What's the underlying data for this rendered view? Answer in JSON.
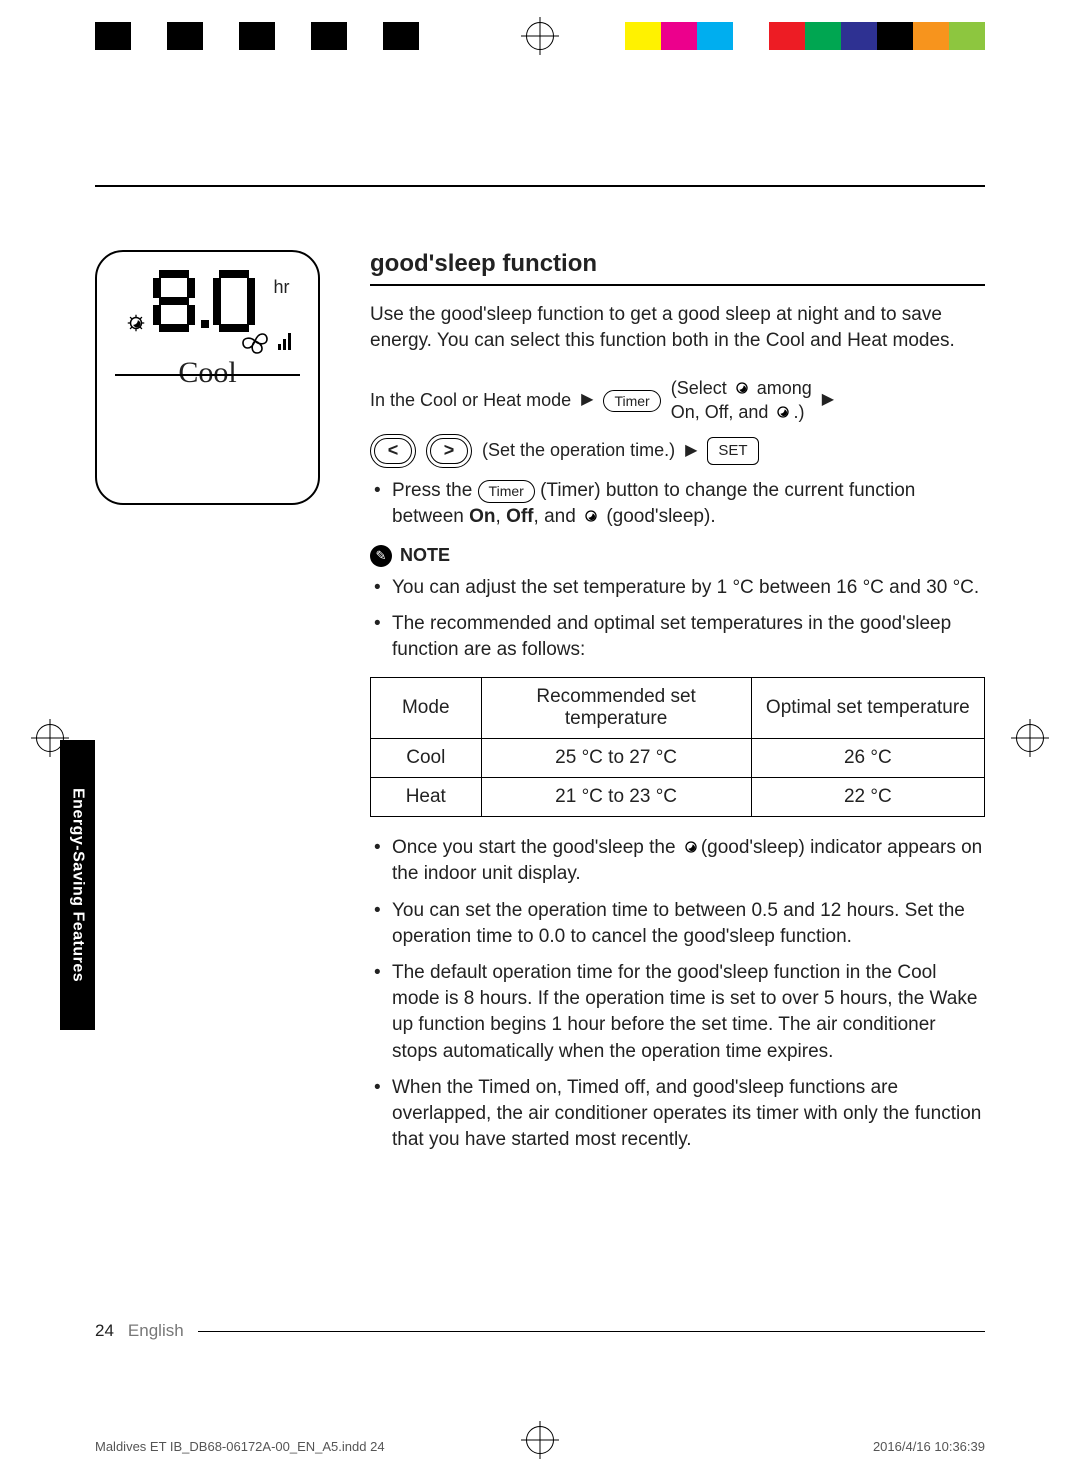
{
  "print": {
    "left_bars": [
      "#000000",
      "#ffffff",
      "#000000",
      "#ffffff",
      "#000000",
      "#ffffff",
      "#000000",
      "#ffffff",
      "#000000"
    ],
    "right_bars": [
      "#fff200",
      "#ec008c",
      "#00aeef",
      "#ffffff",
      "#ed1c24",
      "#00a651",
      "#2e3192",
      "#000000",
      "#f7941d",
      "#8dc63f"
    ]
  },
  "remote": {
    "segment_text": "8.0",
    "hr_suffix": "hr",
    "mode_text": "Cool"
  },
  "title": "good'sleep function",
  "intro": "Use the good'sleep function to get a good sleep at night and to save energy. You can select this function both in the Cool and Heat modes.",
  "flow": {
    "step1": "In the Cool or Heat mode",
    "timer_label": "Timer",
    "select_line1": "(Select ",
    "select_line1b": " among",
    "select_line2": "On, Off, and ",
    "select_line2b": ".)",
    "set_time": "(Set the operation time.)",
    "set_label": "SET"
  },
  "press_line_a": "Press the ",
  "press_line_b": " (Timer) button to change the current function between ",
  "press_on": "On",
  "press_sep1": ", ",
  "press_off": "Off",
  "press_sep2": ", and ",
  "press_tail": " (good'sleep).",
  "note_label": "NOTE",
  "note_items_a": [
    "You can adjust the set temperature by 1 °C between 16 °C and 30 °C.",
    "The recommended and optimal set temperatures in the good'sleep function are as follows:"
  ],
  "table": {
    "columns": [
      "Mode",
      "Recommended set temperature",
      "Optimal set temperature"
    ],
    "rows": [
      [
        "Cool",
        "25 °C to 27 °C",
        "26 °C"
      ],
      [
        "Heat",
        "21 °C to 23 °C",
        "22 °C"
      ]
    ],
    "col_widths_pct": [
      18,
      44,
      38
    ]
  },
  "note_items_b": [
    "Once you start the good'sleep function, the (good'sleep) indicator appears on the indoor unit display.",
    "You can set the operation time to between 0.5 and 12 hours. Set the operation time to 0.0 to cancel the good'sleep function.",
    "The default operation time for the good'sleep function in the Cool mode is 8 hours. If the operation time is set to over 5 hours, the Wake up function begins 1 hour before the set time. The air conditioner stops automatically when the operation time expires.",
    "When the Timed on, Timed off, and good'sleep functions are overlapped, the air conditioner operates its timer with only the function that you have started most recently."
  ],
  "side_tab": "Energy-Saving Features",
  "footer": {
    "page": "24",
    "lang": "English"
  },
  "imprint": {
    "file": "Maldives ET IB_DB68-06172A-00_EN_A5.indd   24",
    "date": "2016/4/16   10:36:39"
  }
}
